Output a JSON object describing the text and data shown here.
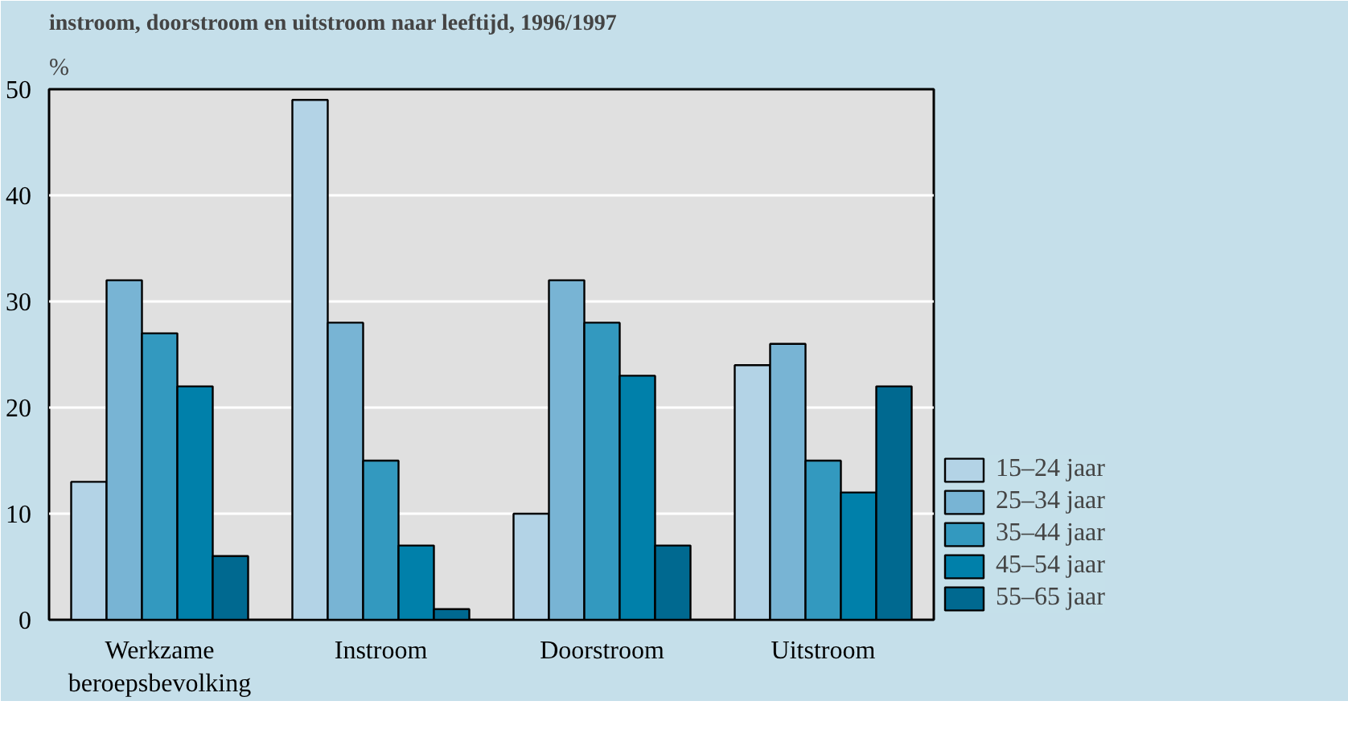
{
  "chart_data": {
    "type": "bar",
    "title": "instroom, doorstroom en uitstroom naar leeftijd, 1996/1997",
    "ylabel": "%",
    "categories": [
      "Werkzame beroepsbevolking",
      "Instroom",
      "Doorstroom",
      "Uitstroom"
    ],
    "series": [
      {
        "name": "15–24 jaar",
        "color": "#b3d3e6",
        "values": [
          13,
          49,
          10,
          24
        ]
      },
      {
        "name": "25–34 jaar",
        "color": "#78b4d4",
        "values": [
          32,
          28,
          32,
          26
        ]
      },
      {
        "name": "35–44 jaar",
        "color": "#3399bf",
        "values": [
          27,
          15,
          28,
          15
        ]
      },
      {
        "name": "45–54 jaar",
        "color": "#0080aa",
        "values": [
          22,
          7,
          23,
          12
        ]
      },
      {
        "name": "55–65 jaar",
        "color": "#006990",
        "values": [
          6,
          1,
          7,
          22
        ]
      }
    ],
    "ylim": [
      0,
      50
    ],
    "yticks": [
      0,
      10,
      20,
      30,
      40,
      50
    ],
    "grid": "y",
    "legend": "bottom right"
  }
}
